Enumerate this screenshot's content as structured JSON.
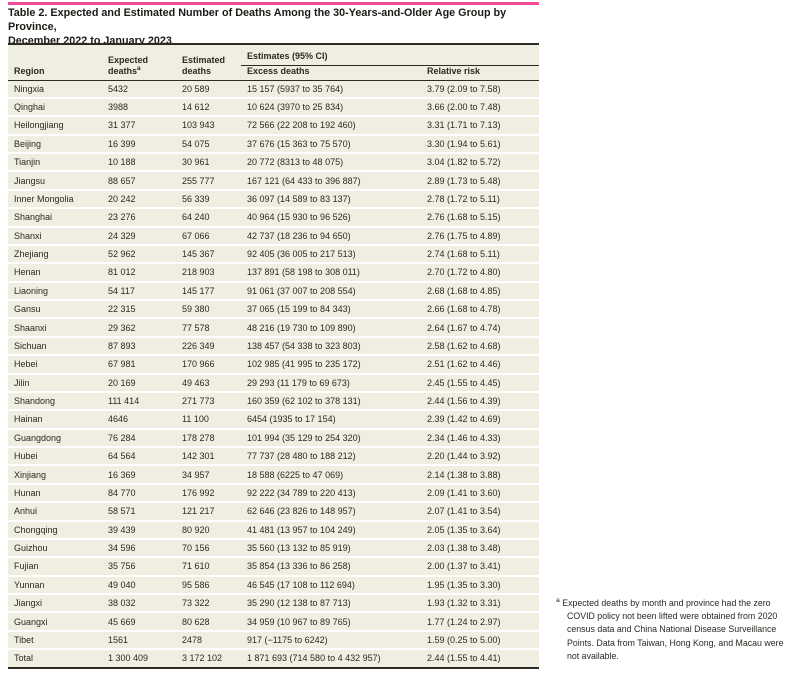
{
  "colors": {
    "accent": "#f04b98",
    "beige": "#f0ede1",
    "rule": "#2e2b26",
    "text": "#2b2923",
    "title": "#1d1b16",
    "page-bg": "#ffffff"
  },
  "table": {
    "title_line1": "Table 2. Expected and Estimated Number of Deaths Among the 30-Years-and-Older Age Group by Province,",
    "title_line2": "December 2022 to January 2023",
    "columns": {
      "region": "Region",
      "expected": "Expected deaths",
      "expected_sup": "a",
      "estimated": "Estimated deaths",
      "estimates_ci": "Estimates (95% CI)",
      "excess": "Excess deaths",
      "relative": "Relative risk"
    },
    "column_order": [
      "region",
      "expected",
      "estimated",
      "excess",
      "relative"
    ],
    "rows": [
      {
        "region": "Ningxia",
        "expected": "5432",
        "estimated": "20 589",
        "excess": "15 157 (5937 to 35 764)",
        "relative": "3.79 (2.09 to 7.58)"
      },
      {
        "region": "Qinghai",
        "expected": "3988",
        "estimated": "14 612",
        "excess": "10 624 (3970 to 25 834)",
        "relative": "3.66 (2.00 to 7.48)"
      },
      {
        "region": "Heilongjiang",
        "expected": "31 377",
        "estimated": "103 943",
        "excess": "72 566 (22 208 to 192 460)",
        "relative": "3.31 (1.71 to 7.13)"
      },
      {
        "region": "Beijing",
        "expected": "16 399",
        "estimated": "54 075",
        "excess": "37 676 (15 363 to 75 570)",
        "relative": "3.30 (1.94 to 5.61)"
      },
      {
        "region": "Tianjin",
        "expected": "10 188",
        "estimated": "30 961",
        "excess": "20 772 (8313 to 48 075)",
        "relative": "3.04 (1.82 to 5.72)"
      },
      {
        "region": "Jiangsu",
        "expected": "88 657",
        "estimated": "255 777",
        "excess": "167 121 (64 433 to 396 887)",
        "relative": "2.89 (1.73 to 5.48)"
      },
      {
        "region": "Inner Mongolia",
        "expected": "20 242",
        "estimated": "56 339",
        "excess": "36 097 (14 589 to 83 137)",
        "relative": "2.78 (1.72 to 5.11)"
      },
      {
        "region": "Shanghai",
        "expected": "23 276",
        "estimated": "64 240",
        "excess": "40 964 (15 930 to 96 526)",
        "relative": "2.76 (1.68 to 5.15)"
      },
      {
        "region": "Shanxi",
        "expected": "24 329",
        "estimated": "67 066",
        "excess": "42 737 (18 236 to 94 650)",
        "relative": "2.76 (1.75 to 4.89)"
      },
      {
        "region": "Zhejiang",
        "expected": "52 962",
        "estimated": "145 367",
        "excess": "92 405 (36 005 to 217 513)",
        "relative": "2.74 (1.68 to 5.11)"
      },
      {
        "region": "Henan",
        "expected": "81 012",
        "estimated": "218 903",
        "excess": "137 891 (58 198 to 308 011)",
        "relative": "2.70 (1.72 to 4.80)"
      },
      {
        "region": "Liaoning",
        "expected": "54 117",
        "estimated": "145 177",
        "excess": "91 061 (37 007 to 208 554)",
        "relative": "2.68 (1.68 to 4.85)"
      },
      {
        "region": "Gansu",
        "expected": "22 315",
        "estimated": "59 380",
        "excess": "37 065 (15 199 to 84 343)",
        "relative": "2.66 (1.68 to 4.78)"
      },
      {
        "region": "Shaanxi",
        "expected": "29 362",
        "estimated": "77 578",
        "excess": "48 216 (19 730 to 109 890)",
        "relative": "2.64 (1.67 to 4.74)"
      },
      {
        "region": "Sichuan",
        "expected": "87 893",
        "estimated": "226 349",
        "excess": "138 457 (54 338 to 323 803)",
        "relative": "2.58 (1.62 to 4.68)"
      },
      {
        "region": "Hebei",
        "expected": "67 981",
        "estimated": "170 966",
        "excess": "102 985 (41 995 to 235 172)",
        "relative": "2.51 (1.62 to 4.46)"
      },
      {
        "region": "Jilin",
        "expected": "20 169",
        "estimated": "49 463",
        "excess": "29 293 (11 179 to 69 673)",
        "relative": "2.45 (1.55 to 4.45)"
      },
      {
        "region": "Shandong",
        "expected": "111 414",
        "estimated": "271 773",
        "excess": "160 359 (62 102 to 378 131)",
        "relative": "2.44 (1.56 to 4.39)"
      },
      {
        "region": "Hainan",
        "expected": "4646",
        "estimated": "11 100",
        "excess": "6454 (1935 to 17 154)",
        "relative": "2.39 (1.42 to 4.69)"
      },
      {
        "region": "Guangdong",
        "expected": "76 284",
        "estimated": "178 278",
        "excess": "101 994 (35 129 to 254 320)",
        "relative": "2.34 (1.46 to 4.33)"
      },
      {
        "region": "Hubei",
        "expected": "64 564",
        "estimated": "142 301",
        "excess": "77 737 (28 480 to 188 212)",
        "relative": "2.20 (1.44 to 3.92)"
      },
      {
        "region": "Xinjiang",
        "expected": "16 369",
        "estimated": "34 957",
        "excess": "18 588 (6225 to 47 069)",
        "relative": "2.14 (1.38 to 3.88)"
      },
      {
        "region": "Hunan",
        "expected": "84 770",
        "estimated": "176 992",
        "excess": "92 222 (34 789 to 220 413)",
        "relative": "2.09 (1.41 to 3.60)"
      },
      {
        "region": "Anhui",
        "expected": "58 571",
        "estimated": "121 217",
        "excess": "62 646 (23 826 to 148 957)",
        "relative": "2.07 (1.41 to 3.54)"
      },
      {
        "region": "Chongqing",
        "expected": "39 439",
        "estimated": "80 920",
        "excess": "41 481 (13 957 to 104 249)",
        "relative": "2.05 (1.35 to 3.64)"
      },
      {
        "region": "Guizhou",
        "expected": "34 596",
        "estimated": "70 156",
        "excess": "35 560 (13 132 to 85 919)",
        "relative": "2.03 (1.38 to 3.48)"
      },
      {
        "region": "Fujian",
        "expected": "35 756",
        "estimated": "71 610",
        "excess": "35 854 (13 336 to 86 258)",
        "relative": "2.00 (1.37 to 3.41)"
      },
      {
        "region": "Yunnan",
        "expected": "49 040",
        "estimated": "95 586",
        "excess": "46 545 (17 108 to 112 694)",
        "relative": "1.95 (1.35 to 3.30)"
      },
      {
        "region": "Jiangxi",
        "expected": "38 032",
        "estimated": "73 322",
        "excess": "35 290 (12 138 to 87 713)",
        "relative": "1.93 (1.32 to 3.31)"
      },
      {
        "region": "Guangxi",
        "expected": "45 669",
        "estimated": "80 628",
        "excess": "34 959 (10 967 to 89 765)",
        "relative": "1.77 (1.24 to 2.97)"
      },
      {
        "region": "Tibet",
        "expected": "1561",
        "estimated": "2478",
        "excess": "917 (−1175 to 6242)",
        "relative": "1.59 (0.25 to 5.00)"
      },
      {
        "region": "Total",
        "expected": "1 300 409",
        "estimated": "3 172 102",
        "excess": "1 871 693 (714 580 to 4 432 957)",
        "relative": "2.44 (1.55 to 4.41)"
      }
    ]
  },
  "footnote": {
    "marker": "a",
    "text": "Expected deaths by month and province had the zero COVID policy not been lifted were obtained from 2020 census data and China National Disease Surveillance Points. Data from Taiwan, Hong Kong, and Macau were not available."
  }
}
